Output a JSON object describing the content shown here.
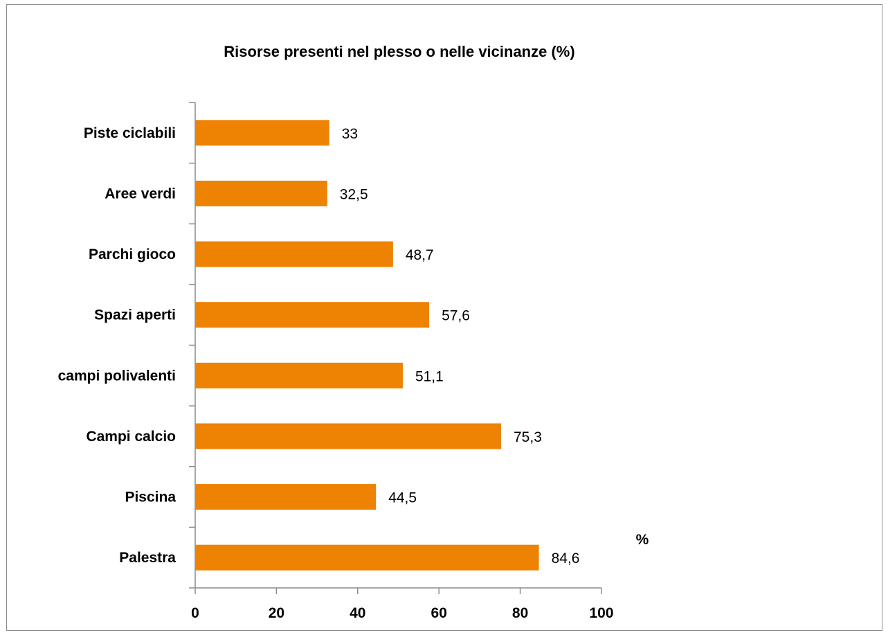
{
  "chart_data": {
    "type": "bar",
    "orientation": "horizontal",
    "title": "Risorse presenti nel plesso o nelle vicinanze (%)",
    "categories": [
      "Palestra",
      "Piscina",
      "Campi calcio",
      "campi polivalenti",
      "Spazi aperti",
      "Parchi gioco",
      "Aree verdi",
      "Piste ciclabili"
    ],
    "values": [
      84.6,
      44.5,
      75.3,
      51.1,
      57.6,
      48.7,
      32.5,
      33
    ],
    "value_labels": [
      "84,6",
      "44,5",
      "75,3",
      "51,1",
      "57,6",
      "48,7",
      "32,5",
      "33"
    ],
    "xlim": [
      0,
      100
    ],
    "xticks": [
      0,
      20,
      40,
      60,
      80,
      100
    ],
    "xtick_labels": [
      "0",
      "20",
      "40",
      "60",
      "80",
      "100"
    ],
    "xlabel": "%",
    "ylabel": "",
    "grid": false,
    "legend": "none",
    "bar_color": "#ed8203"
  }
}
